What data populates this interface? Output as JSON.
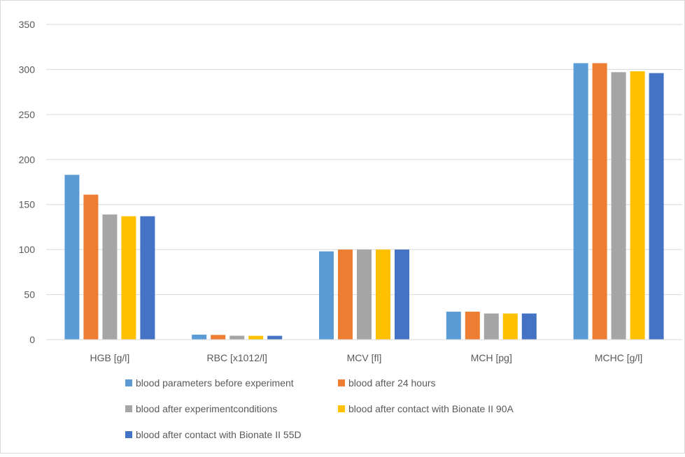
{
  "chart_data": {
    "type": "bar",
    "title": "",
    "xlabel": "",
    "ylabel": "",
    "ylim": [
      0,
      350
    ],
    "yticks": [
      0,
      50,
      100,
      150,
      200,
      250,
      300,
      350
    ],
    "grid": true,
    "legend_position": "bottom",
    "categories": [
      "HGB [g/l]",
      "RBC [x1012/l]",
      "MCV [fl]",
      "MCH [pg]",
      "MCHC [g/l]"
    ],
    "series": [
      {
        "name": "blood parameters before experiment",
        "color": "#5B9BD5",
        "values": [
          183,
          5.5,
          98,
          31,
          307
        ]
      },
      {
        "name": "blood after 24 hours",
        "color": "#ED7D31",
        "values": [
          161,
          5.2,
          100,
          31,
          307
        ]
      },
      {
        "name": "blood after experimentconditions",
        "color": "#A5A5A5",
        "values": [
          139,
          4.3,
          100,
          29,
          297
        ]
      },
      {
        "name": "blood after contact with Bionate II 90A",
        "color": "#FFC000",
        "values": [
          137,
          4.2,
          100,
          29,
          298
        ]
      },
      {
        "name": "blood after contact with Bionate II 55D",
        "color": "#4472C4",
        "values": [
          137,
          4.2,
          100,
          29,
          296
        ]
      }
    ]
  }
}
